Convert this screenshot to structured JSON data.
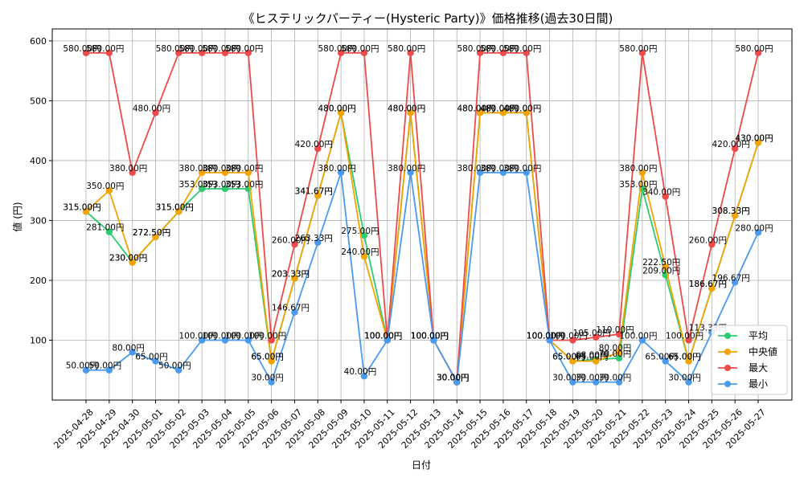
{
  "chart_data": {
    "type": "line",
    "title": "《ヒステリックパーティー(Hysteric Party)》価格推移(過去30日間)",
    "xlabel": "日付",
    "ylabel": "値 (円)",
    "ylim": [
      0,
      620
    ],
    "yticks": [
      100,
      200,
      300,
      400,
      500,
      600
    ],
    "grid": true,
    "legend_position": "lower-right",
    "categories": [
      "2025-04-28",
      "2025-04-29",
      "2025-04-30",
      "2025-05-01",
      "2025-05-02",
      "2025-05-03",
      "2025-05-04",
      "2025-05-05",
      "2025-05-06",
      "2025-05-07",
      "2025-05-08",
      "2025-05-09",
      "2025-05-10",
      "2025-05-11",
      "2025-05-12",
      "2025-05-13",
      "2025-05-14",
      "2025-05-15",
      "2025-05-16",
      "2025-05-17",
      "2025-05-18",
      "2025-05-19",
      "2025-05-20",
      "2025-05-21",
      "2025-05-22",
      "2025-05-23",
      "2025-05-24",
      "2025-05-25",
      "2025-05-26",
      "2025-05-27"
    ],
    "series": [
      {
        "name": "平均",
        "color": "#2ecc71",
        "values": [
          315.0,
          281.0,
          230.0,
          272.5,
          315.0,
          353.0,
          353.0,
          353.0,
          65.0,
          203.33,
          341.67,
          480.0,
          275.0,
          100.0,
          480.0,
          100.0,
          30.0,
          480.0,
          480.0,
          480.0,
          100.0,
          65.0,
          68.0,
          70.0,
          353.0,
          209.0,
          65.0,
          186.67,
          308.33,
          430.0
        ]
      },
      {
        "name": "中央値",
        "color": "#f5a300",
        "values": [
          315.0,
          350.0,
          230.0,
          272.5,
          315.0,
          380.0,
          380.0,
          380.0,
          65.0,
          203.33,
          341.67,
          480.0,
          240.0,
          100.0,
          480.0,
          100.0,
          30.0,
          480.0,
          480.0,
          480.0,
          100.0,
          65.0,
          65.0,
          80.0,
          380.0,
          222.5,
          65.0,
          186.67,
          308.33,
          430.0
        ]
      },
      {
        "name": "最大",
        "color": "#ef4a4a",
        "values": [
          580.0,
          580.0,
          380.0,
          480.0,
          580.0,
          580.0,
          580.0,
          580.0,
          100.0,
          260.0,
          420.0,
          580.0,
          580.0,
          100.0,
          580.0,
          100.0,
          30.0,
          580.0,
          580.0,
          580.0,
          100.0,
          100.0,
          105.0,
          110.0,
          580.0,
          340.0,
          100.0,
          260.0,
          420.0,
          580.0
        ]
      },
      {
        "name": "最小",
        "color": "#4a9af0",
        "values": [
          50.0,
          50.0,
          80.0,
          65.0,
          50.0,
          100.0,
          100.0,
          100.0,
          30.0,
          146.67,
          263.33,
          380.0,
          40.0,
          100.0,
          380.0,
          100.0,
          30.0,
          380.0,
          380.0,
          380.0,
          100.0,
          30.0,
          30.0,
          30.0,
          100.0,
          65.0,
          30.0,
          113.33,
          196.67,
          280.0
        ]
      }
    ],
    "unit_suffix": "円"
  }
}
